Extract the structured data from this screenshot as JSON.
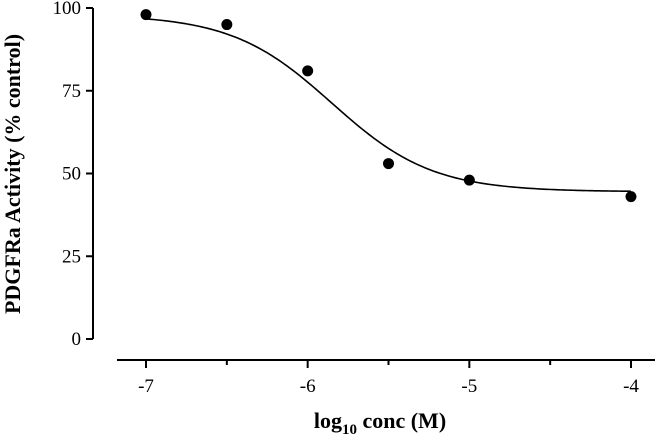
{
  "chart_data": {
    "type": "scatter",
    "title": "",
    "xlabel": "log",
    "xlabel_subscript": "10",
    "xlabel_suffix": " conc (M)",
    "ylabel": "PDGFRa Activity (% control)",
    "xlim": [
      -7.25,
      -3.8
    ],
    "ylim": [
      0,
      100
    ],
    "xticks": [
      -7,
      -6,
      -5,
      -4
    ],
    "xtick_labels": [
      "-7",
      "-6",
      "-5",
      "-4"
    ],
    "xticks_minor": [
      -6.5,
      -5.5,
      -4.5
    ],
    "yticks": [
      0,
      25,
      50,
      75,
      100
    ],
    "ytick_labels": [
      "0",
      "25",
      "50",
      "75",
      "100"
    ],
    "grid": false,
    "legend": "none",
    "series": [
      {
        "x": [
          -7,
          -6.5,
          -6,
          -5.5,
          -5,
          -4
        ],
        "y": [
          98,
          95,
          81,
          53,
          48,
          43
        ]
      }
    ],
    "fit_curve": {
      "model": "sigmoidal dose-response",
      "top": 98,
      "bottom": 44.5,
      "logIC50": -5.85,
      "hill_slope": -1.4
    }
  }
}
